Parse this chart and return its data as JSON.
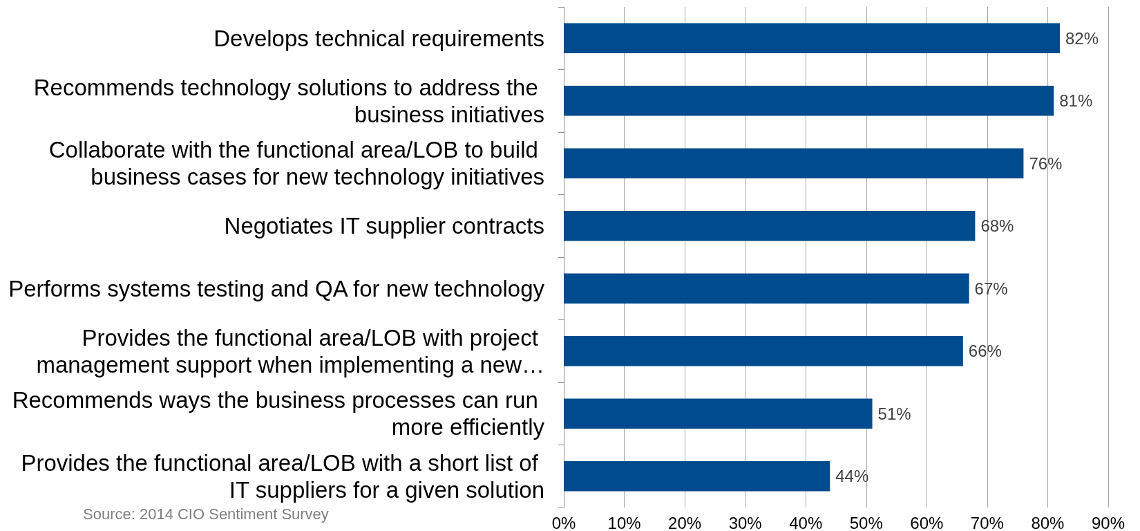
{
  "chart_data": {
    "type": "bar",
    "orientation": "horizontal",
    "categories": [
      "Develops technical requirements",
      "Recommends technology solutions to address the business initiatives",
      "Collaborate with the functional area/LOB to build business cases for new technology initiatives",
      "Negotiates IT supplier contracts",
      "Performs systems testing and QA for new technology",
      "Provides the functional area/LOB with project management support when implementing a new…",
      "Recommends ways the business processes can run more efficiently",
      "Provides the functional area/LOB with a short list of IT suppliers for a given solution"
    ],
    "values": [
      82,
      81,
      76,
      68,
      67,
      66,
      51,
      44
    ],
    "value_labels": [
      "82%",
      "81%",
      "76%",
      "68%",
      "67%",
      "66%",
      "51%",
      "44%"
    ],
    "color": "#004b8d",
    "xlim": [
      0,
      90
    ],
    "xticks": [
      {
        "value": 0,
        "label": "0%"
      },
      {
        "value": 10,
        "label": "10%"
      },
      {
        "value": 20,
        "label": "20%"
      },
      {
        "value": 30,
        "label": "30%"
      },
      {
        "value": 40,
        "label": "40%"
      },
      {
        "value": 50,
        "label": "50%"
      },
      {
        "value": 60,
        "label": "60%"
      },
      {
        "value": 70,
        "label": "70%"
      },
      {
        "value": 80,
        "label": "80%"
      },
      {
        "value": 90,
        "label": "90%"
      }
    ],
    "grid": "x",
    "annotations": [
      "Source: 2014 CIO Sentiment Survey"
    ]
  }
}
